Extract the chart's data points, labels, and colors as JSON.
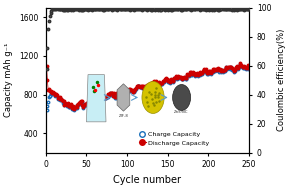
{
  "title": "",
  "xlabel": "Cycle number",
  "ylabel_left": "Capacity mAh g⁻¹",
  "ylabel_right": "Coulombic efficiency(%)",
  "xlim": [
    0,
    250
  ],
  "ylim_left": [
    200,
    1700
  ],
  "ylim_right": [
    0,
    100
  ],
  "yticks_left": [
    400,
    800,
    1200,
    1600
  ],
  "yticks_right": [
    0,
    20,
    40,
    60,
    80,
    100
  ],
  "xticks": [
    0,
    50,
    100,
    150,
    200,
    250
  ],
  "charge_color": "#1a6fba",
  "discharge_color": "#cc0000",
  "ce_color": "#333333",
  "legend_charge": "Charge Capacity",
  "legend_discharge": "Discharge Capacity",
  "background_color": "#ffffff"
}
